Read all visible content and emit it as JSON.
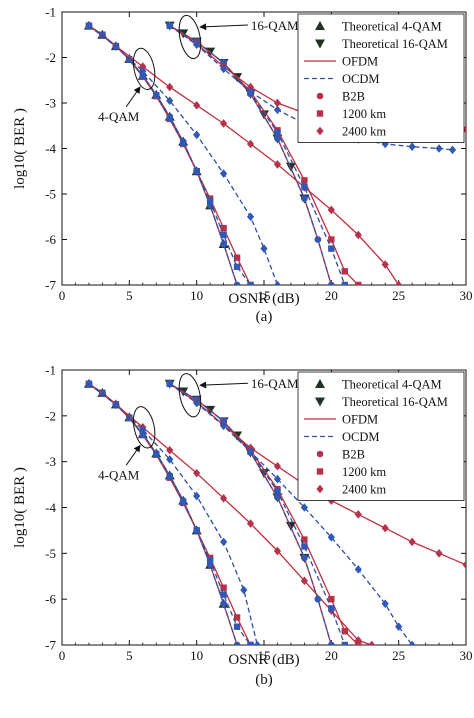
{
  "colors": {
    "theoretical": "#1f3324",
    "ofdm": "#c03040",
    "ocdm": "#2e4fa0",
    "ofdm_marker": "#b5324a",
    "ocdm_marker": "#2f59b5",
    "axis": "#111111"
  },
  "legend": {
    "theoretical_4qam": "Theoretical 4-QAM",
    "theoretical_16qam": "Theoretical 16-QAM",
    "ofdm": "OFDM",
    "ocdm": "OCDM",
    "b2b": "B2B",
    "km1200": "1200 km",
    "km2400": "2400 km"
  },
  "annotations": {
    "qam16": "16-QAM",
    "qam4": "4-QAM"
  },
  "chart_data": [
    {
      "type": "line",
      "caption": "(a)",
      "xlabel": "OSNR (dB)",
      "ylabel": "log10( BER )",
      "xlim": [
        0,
        30
      ],
      "ylim": [
        -7,
        -1
      ],
      "xticks": [
        "0",
        "5",
        "10",
        "15",
        "20",
        "25",
        "30"
      ],
      "yticks": [
        "-1",
        "-2",
        "-3",
        "-4",
        "-5",
        "-6",
        "-7"
      ],
      "grid": false,
      "legend_position": "top-right",
      "series": [
        {
          "name": "Theoretical 4-QAM",
          "marker": "triangle-up",
          "x": [
            2,
            3,
            4,
            5,
            6,
            7,
            8,
            9,
            10,
            11,
            12
          ],
          "y": [
            -1.3,
            -1.5,
            -1.75,
            -2.03,
            -2.4,
            -2.82,
            -3.3,
            -3.85,
            -4.5,
            -5.25,
            -6.1
          ]
        },
        {
          "name": "Theoretical 16-QAM",
          "marker": "triangle-down",
          "x": [
            8,
            9,
            10,
            11,
            12,
            13,
            14,
            15,
            16,
            17,
            18
          ],
          "y": [
            -1.3,
            -1.47,
            -1.65,
            -1.87,
            -2.12,
            -2.43,
            -2.8,
            -3.25,
            -3.78,
            -4.4,
            -5.1
          ]
        },
        {
          "name": "OFDM 4-QAM B2B",
          "marker": "circle",
          "x": [
            2,
            3,
            4,
            5,
            6,
            7,
            8,
            9,
            10,
            11,
            12,
            13
          ],
          "y": [
            -1.3,
            -1.5,
            -1.75,
            -2.03,
            -2.4,
            -2.82,
            -3.3,
            -3.85,
            -4.5,
            -5.25,
            -6.1,
            -7
          ]
        },
        {
          "name": "OCDM 4-QAM B2B",
          "marker": "circle",
          "x": [
            2,
            3,
            4,
            5,
            6,
            7,
            8,
            9,
            10,
            11,
            12,
            13
          ],
          "y": [
            -1.3,
            -1.5,
            -1.75,
            -2.03,
            -2.4,
            -2.82,
            -3.3,
            -3.85,
            -4.5,
            -5.25,
            -6.1,
            -7
          ]
        },
        {
          "name": "OFDM 4-QAM 1200 km",
          "marker": "square",
          "x": [
            2,
            3,
            4,
            5,
            6,
            7,
            8,
            9,
            10,
            11,
            12,
            13,
            14
          ],
          "y": [
            -1.3,
            -1.5,
            -1.75,
            -2.05,
            -2.42,
            -2.85,
            -3.35,
            -3.9,
            -4.5,
            -5.1,
            -5.75,
            -6.4,
            -7
          ]
        },
        {
          "name": "OCDM 4-QAM 1200 km",
          "marker": "square",
          "x": [
            2,
            3,
            4,
            5,
            6,
            7,
            8,
            9,
            10,
            11,
            12,
            13,
            14
          ],
          "y": [
            -1.3,
            -1.5,
            -1.75,
            -2.04,
            -2.41,
            -2.83,
            -3.33,
            -3.88,
            -4.5,
            -5.15,
            -5.9,
            -6.6,
            -7
          ]
        },
        {
          "name": "OFDM 4-QAM 2400 km",
          "marker": "diamond",
          "x": [
            2,
            4,
            6,
            8,
            10,
            12,
            14,
            16,
            18,
            20,
            22,
            24,
            25
          ],
          "y": [
            -1.3,
            -1.75,
            -2.2,
            -2.65,
            -3.05,
            -3.45,
            -3.9,
            -4.35,
            -4.85,
            -5.35,
            -5.9,
            -6.55,
            -7
          ]
        },
        {
          "name": "OCDM 4-QAM 2400 km",
          "marker": "diamond",
          "x": [
            2,
            4,
            6,
            8,
            10,
            12,
            14,
            15,
            16
          ],
          "y": [
            -1.3,
            -1.76,
            -2.3,
            -2.95,
            -3.7,
            -4.55,
            -5.5,
            -6.2,
            -7
          ]
        },
        {
          "name": "OFDM 16-QAM B2B",
          "marker": "circle",
          "x": [
            8,
            10,
            12,
            14,
            16,
            18,
            19,
            20
          ],
          "y": [
            -1.3,
            -1.65,
            -2.12,
            -2.8,
            -3.78,
            -5.1,
            -6.0,
            -7
          ]
        },
        {
          "name": "OCDM 16-QAM B2B",
          "marker": "circle",
          "x": [
            8,
            10,
            12,
            14,
            16,
            18,
            19,
            20
          ],
          "y": [
            -1.3,
            -1.65,
            -2.12,
            -2.8,
            -3.78,
            -5.1,
            -6.0,
            -7
          ]
        },
        {
          "name": "OFDM 16-QAM 1200 km",
          "marker": "square",
          "x": [
            8,
            10,
            12,
            14,
            16,
            18,
            20,
            21,
            22
          ],
          "y": [
            -1.3,
            -1.65,
            -2.12,
            -2.75,
            -3.6,
            -4.7,
            -6.0,
            -6.7,
            -7
          ]
        },
        {
          "name": "OCDM 16-QAM 1200 km",
          "marker": "square",
          "x": [
            8,
            10,
            12,
            14,
            16,
            18,
            20,
            21
          ],
          "y": [
            -1.3,
            -1.65,
            -2.12,
            -2.78,
            -3.65,
            -4.85,
            -6.2,
            -7
          ]
        },
        {
          "name": "OFDM 16-QAM 2400 km",
          "marker": "diamond",
          "x": [
            8,
            10,
            12,
            14,
            16,
            18,
            20,
            22,
            24,
            26,
            28,
            30
          ],
          "y": [
            -1.3,
            -1.7,
            -2.2,
            -2.65,
            -3.0,
            -3.22,
            -3.36,
            -3.44,
            -3.5,
            -3.53,
            -3.56,
            -3.58
          ]
        },
        {
          "name": "OCDM 16-QAM 2400 km",
          "marker": "diamond",
          "x": [
            8,
            10,
            12,
            14,
            16,
            18,
            20,
            22,
            24,
            26,
            28,
            29
          ],
          "y": [
            -1.3,
            -1.72,
            -2.25,
            -2.75,
            -3.15,
            -3.45,
            -3.65,
            -3.8,
            -3.9,
            -3.96,
            -4.0,
            -4.03
          ]
        }
      ]
    },
    {
      "type": "line",
      "caption": "(b)",
      "xlabel": "OSNR (dB)",
      "ylabel": "log10( BER )",
      "xlim": [
        0,
        30
      ],
      "ylim": [
        -7,
        -1
      ],
      "xticks": [
        "0",
        "5",
        "10",
        "15",
        "20",
        "25",
        "30"
      ],
      "yticks": [
        "-1",
        "-2",
        "-3",
        "-4",
        "-5",
        "-6",
        "-7"
      ],
      "grid": false,
      "legend_position": "top-right",
      "series": [
        {
          "name": "Theoretical 4-QAM",
          "marker": "triangle-up",
          "x": [
            2,
            3,
            4,
            5,
            6,
            7,
            8,
            9,
            10,
            11,
            12
          ],
          "y": [
            -1.3,
            -1.5,
            -1.75,
            -2.03,
            -2.4,
            -2.82,
            -3.3,
            -3.85,
            -4.5,
            -5.25,
            -6.1
          ]
        },
        {
          "name": "Theoretical 16-QAM",
          "marker": "triangle-down",
          "x": [
            8,
            9,
            10,
            11,
            12,
            13,
            14,
            15,
            16,
            17,
            18
          ],
          "y": [
            -1.3,
            -1.47,
            -1.65,
            -1.87,
            -2.12,
            -2.43,
            -2.8,
            -3.25,
            -3.78,
            -4.4,
            -5.1
          ]
        },
        {
          "name": "OFDM 4-QAM B2B",
          "marker": "circle",
          "x": [
            2,
            3,
            4,
            5,
            6,
            7,
            8,
            9,
            10,
            11,
            12,
            13
          ],
          "y": [
            -1.3,
            -1.5,
            -1.75,
            -2.03,
            -2.4,
            -2.82,
            -3.3,
            -3.85,
            -4.5,
            -5.25,
            -6.1,
            -7
          ]
        },
        {
          "name": "OCDM 4-QAM B2B",
          "marker": "circle",
          "x": [
            2,
            3,
            4,
            5,
            6,
            7,
            8,
            9,
            10,
            11,
            12,
            13
          ],
          "y": [
            -1.3,
            -1.5,
            -1.75,
            -2.03,
            -2.4,
            -2.82,
            -3.3,
            -3.85,
            -4.5,
            -5.25,
            -6.1,
            -7
          ]
        },
        {
          "name": "OFDM 4-QAM 1200 km",
          "marker": "square",
          "x": [
            2,
            3,
            4,
            5,
            6,
            7,
            8,
            9,
            10,
            11,
            12,
            13,
            14
          ],
          "y": [
            -1.3,
            -1.5,
            -1.75,
            -2.05,
            -2.42,
            -2.85,
            -3.35,
            -3.9,
            -4.5,
            -5.1,
            -5.75,
            -6.4,
            -7
          ]
        },
        {
          "name": "OCDM 4-QAM 1200 km",
          "marker": "square",
          "x": [
            2,
            3,
            4,
            5,
            6,
            7,
            8,
            9,
            10,
            11,
            12,
            13,
            14
          ],
          "y": [
            -1.3,
            -1.5,
            -1.75,
            -2.04,
            -2.41,
            -2.83,
            -3.33,
            -3.88,
            -4.5,
            -5.15,
            -5.9,
            -6.6,
            -7
          ]
        },
        {
          "name": "OFDM 4-QAM 2400 km",
          "marker": "diamond",
          "x": [
            2,
            4,
            6,
            8,
            10,
            12,
            14,
            16,
            18,
            20,
            22,
            23
          ],
          "y": [
            -1.3,
            -1.75,
            -2.25,
            -2.75,
            -3.25,
            -3.8,
            -4.35,
            -4.95,
            -5.6,
            -6.25,
            -6.9,
            -7
          ]
        },
        {
          "name": "OCDM 4-QAM 2400 km",
          "marker": "diamond",
          "x": [
            2,
            4,
            6,
            8,
            10,
            12,
            13.5,
            14.5
          ],
          "y": [
            -1.3,
            -1.76,
            -2.3,
            -2.95,
            -3.75,
            -4.75,
            -5.8,
            -7
          ]
        },
        {
          "name": "OFDM 16-QAM B2B",
          "marker": "circle",
          "x": [
            8,
            10,
            12,
            14,
            16,
            18,
            19,
            20
          ],
          "y": [
            -1.3,
            -1.65,
            -2.12,
            -2.8,
            -3.78,
            -5.1,
            -6.0,
            -7
          ]
        },
        {
          "name": "OCDM 16-QAM B2B",
          "marker": "circle",
          "x": [
            8,
            10,
            12,
            14,
            16,
            18,
            19,
            20
          ],
          "y": [
            -1.3,
            -1.65,
            -2.12,
            -2.8,
            -3.78,
            -5.1,
            -6.0,
            -7
          ]
        },
        {
          "name": "OFDM 16-QAM 1200 km",
          "marker": "square",
          "x": [
            8,
            10,
            12,
            14,
            16,
            18,
            20,
            21,
            22
          ],
          "y": [
            -1.3,
            -1.65,
            -2.12,
            -2.75,
            -3.6,
            -4.7,
            -6.0,
            -6.7,
            -7
          ]
        },
        {
          "name": "OCDM 16-QAM 1200 km",
          "marker": "square",
          "x": [
            8,
            10,
            12,
            14,
            16,
            18,
            20,
            21
          ],
          "y": [
            -1.3,
            -1.65,
            -2.12,
            -2.78,
            -3.65,
            -4.85,
            -6.2,
            -7
          ]
        },
        {
          "name": "OFDM 16-QAM 2400 km",
          "marker": "diamond",
          "x": [
            8,
            10,
            12,
            14,
            16,
            18,
            20,
            22,
            24,
            26,
            28,
            30
          ],
          "y": [
            -1.3,
            -1.7,
            -2.2,
            -2.7,
            -3.1,
            -3.5,
            -3.85,
            -4.15,
            -4.45,
            -4.75,
            -5.0,
            -5.25
          ]
        },
        {
          "name": "OCDM 16-QAM 2400 km",
          "marker": "diamond",
          "x": [
            8,
            10,
            12,
            14,
            16,
            18,
            20,
            22,
            24,
            25,
            26
          ],
          "y": [
            -1.3,
            -1.72,
            -2.22,
            -2.78,
            -3.38,
            -4.0,
            -4.65,
            -5.35,
            -6.1,
            -6.6,
            -7
          ]
        }
      ]
    }
  ]
}
